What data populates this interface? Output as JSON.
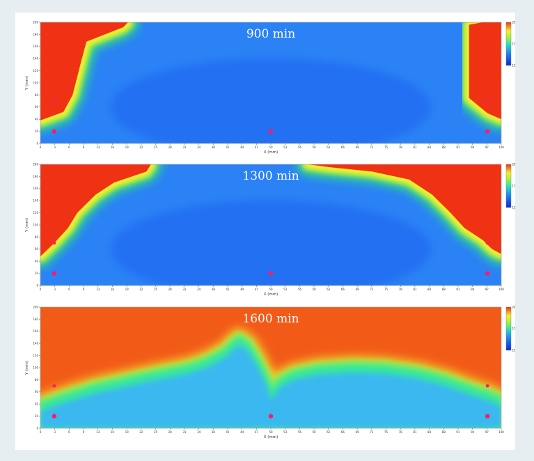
{
  "colors": {
    "page_bg": "#e6eef2",
    "cold": "#1a5cf0",
    "mid": "#2fe080",
    "warm": "#f5f02a",
    "hot": "#f03214",
    "marker": "#ff1a66"
  },
  "chart_data": [
    {
      "type": "heatmap",
      "title": "900 min",
      "xlabel": "X (mm)",
      "ylabel": "Y (mm)",
      "xlim": [
        0,
        100
      ],
      "ylim": [
        0,
        200
      ],
      "x_ticks": [
        "0",
        "3",
        "6",
        "9",
        "13",
        "16",
        "19",
        "22",
        "25",
        "28",
        "31",
        "34",
        "38",
        "41",
        "44",
        "47",
        "50",
        "53",
        "56",
        "59",
        "62",
        "66",
        "69",
        "72",
        "75",
        "78",
        "81",
        "84",
        "88",
        "91",
        "94",
        "97",
        "100"
      ],
      "y_ticks": [
        "0",
        "20",
        "40",
        "60",
        "80",
        "100",
        "120",
        "140",
        "160",
        "180",
        "200"
      ],
      "colorbar_ticks": [
        "150.00",
        "175.00",
        "200.00"
      ],
      "hot_boundary_left": [
        [
          0,
          200
        ],
        [
          10,
          200
        ],
        [
          19,
          200
        ],
        [
          18,
          192
        ],
        [
          14,
          180
        ],
        [
          10,
          168
        ],
        [
          9,
          140
        ],
        [
          7,
          80
        ],
        [
          5,
          52
        ],
        [
          0,
          38
        ]
      ],
      "hot_boundary_right": [
        [
          100,
          200
        ],
        [
          96,
          200
        ],
        [
          93,
          196
        ],
        [
          93,
          160
        ],
        [
          93,
          100
        ],
        [
          93,
          75
        ],
        [
          97,
          50
        ],
        [
          100,
          40
        ]
      ],
      "sensors": [
        [
          3,
          70
        ],
        [
          3,
          20
        ],
        [
          50,
          20
        ],
        [
          97,
          70
        ],
        [
          97,
          20
        ]
      ]
    },
    {
      "type": "heatmap",
      "title": "1300 min",
      "xlabel": "X (mm)",
      "ylabel": "Y (mm)",
      "xlim": [
        0,
        100
      ],
      "ylim": [
        0,
        200
      ],
      "x_ticks": [
        "0",
        "3",
        "6",
        "9",
        "13",
        "16",
        "19",
        "22",
        "25",
        "28",
        "31",
        "34",
        "38",
        "41",
        "44",
        "47",
        "50",
        "53",
        "56",
        "59",
        "62",
        "66",
        "69",
        "72",
        "75",
        "78",
        "81",
        "84",
        "88",
        "91",
        "94",
        "97",
        "100"
      ],
      "y_ticks": [
        "0",
        "20",
        "40",
        "60",
        "80",
        "100",
        "120",
        "140",
        "160",
        "180",
        "200"
      ],
      "colorbar_ticks": [
        "150.00",
        "175.00",
        "200.00"
      ],
      "hot_boundary_left": [
        [
          0,
          200
        ],
        [
          24,
          200
        ],
        [
          23,
          188
        ],
        [
          16,
          170
        ],
        [
          12,
          150
        ],
        [
          8,
          120
        ],
        [
          6,
          95
        ],
        [
          3,
          70
        ],
        [
          0,
          48
        ]
      ],
      "hot_boundary_right": [
        [
          100,
          200
        ],
        [
          58,
          200
        ],
        [
          63,
          195
        ],
        [
          72,
          188
        ],
        [
          80,
          175
        ],
        [
          85,
          150
        ],
        [
          89,
          120
        ],
        [
          92,
          95
        ],
        [
          96,
          75
        ],
        [
          98,
          60
        ],
        [
          100,
          52
        ]
      ],
      "sensors": [
        [
          3,
          70
        ],
        [
          3,
          20
        ],
        [
          50,
          20
        ],
        [
          97,
          70
        ],
        [
          97,
          20
        ]
      ]
    },
    {
      "type": "heatmap",
      "title": "1600 min",
      "xlabel": "X (mm)",
      "ylabel": "Y (mm)",
      "xlim": [
        0,
        100
      ],
      "ylim": [
        0,
        200
      ],
      "x_ticks": [
        "0",
        "3",
        "6",
        "9",
        "13",
        "16",
        "19",
        "22",
        "25",
        "28",
        "31",
        "34",
        "38",
        "41",
        "44",
        "47",
        "50",
        "53",
        "56",
        "59",
        "62",
        "66",
        "69",
        "72",
        "75",
        "78",
        "81",
        "84",
        "88",
        "91",
        "94",
        "97",
        "100"
      ],
      "y_ticks": [
        "0",
        "20",
        "40",
        "60",
        "80",
        "100",
        "120",
        "140",
        "160",
        "180",
        "200"
      ],
      "colorbar_ticks": [
        "150.00",
        "175.00",
        "200.00"
      ],
      "cold_region": [
        [
          0,
          40
        ],
        [
          6,
          56
        ],
        [
          12,
          70
        ],
        [
          18,
          80
        ],
        [
          24,
          90
        ],
        [
          32,
          102
        ],
        [
          36,
          112
        ],
        [
          40,
          128
        ],
        [
          43,
          150
        ],
        [
          45,
          140
        ],
        [
          47,
          115
        ],
        [
          49,
          85
        ],
        [
          50,
          58
        ],
        [
          52,
          80
        ],
        [
          55,
          92
        ],
        [
          60,
          100
        ],
        [
          68,
          104
        ],
        [
          75,
          102
        ],
        [
          82,
          94
        ],
        [
          88,
          82
        ],
        [
          93,
          68
        ],
        [
          97,
          58
        ],
        [
          100,
          48
        ],
        [
          100,
          0
        ],
        [
          0,
          0
        ]
      ],
      "sensors": [
        [
          3,
          70
        ],
        [
          3,
          20
        ],
        [
          50,
          20
        ],
        [
          97,
          70
        ],
        [
          97,
          20
        ]
      ]
    }
  ]
}
